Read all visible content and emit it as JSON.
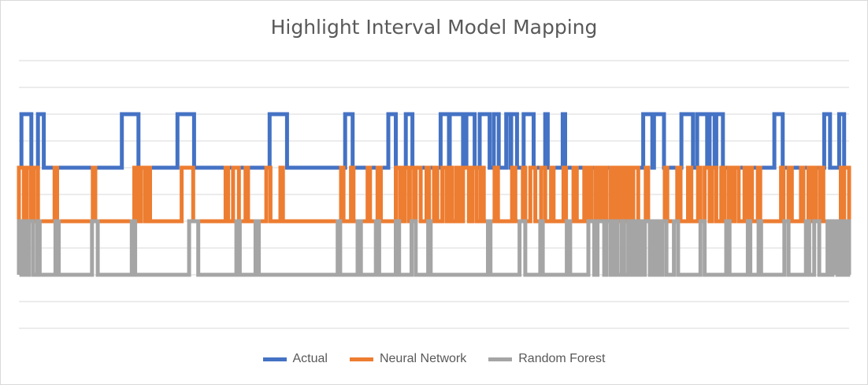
{
  "chart_data": {
    "type": "line",
    "title": "Highlight Interval Model Mapping",
    "xlabel": "",
    "ylabel": "",
    "grid": true,
    "legend_position": "bottom",
    "x_range": [
      0,
      1000
    ],
    "series": [
      {
        "name": "Actual",
        "color": "#4472C4",
        "baseline": 1,
        "high": 2,
        "intervals": [
          [
            3,
            15
          ],
          [
            23,
            30
          ],
          [
            124,
            144
          ],
          [
            191,
            211
          ],
          [
            302,
            323
          ],
          [
            393,
            402
          ],
          [
            445,
            454
          ],
          [
            466,
            474
          ],
          [
            508,
            518
          ],
          [
            519,
            535
          ],
          [
            539,
            549
          ],
          [
            555,
            567
          ],
          [
            572,
            578
          ],
          [
            587,
            592
          ],
          [
            593,
            600
          ],
          [
            608,
            620
          ],
          [
            634,
            637
          ],
          [
            655,
            658
          ],
          [
            752,
            763
          ],
          [
            765,
            777
          ],
          [
            798,
            812
          ],
          [
            817,
            829
          ],
          [
            832,
            838
          ],
          [
            840,
            848
          ],
          [
            910,
            920
          ],
          [
            970,
            977
          ],
          [
            988,
            994
          ]
        ]
      },
      {
        "name": "Neural Network",
        "color": "#ED7D31",
        "baseline": 0,
        "high": 1,
        "intervals": [
          [
            0,
            6
          ],
          [
            9,
            14
          ],
          [
            18,
            23
          ],
          [
            43,
            46
          ],
          [
            89,
            92
          ],
          [
            139,
            143
          ],
          [
            147,
            152
          ],
          [
            155,
            158
          ],
          [
            196,
            210
          ],
          [
            249,
            252
          ],
          [
            258,
            265
          ],
          [
            273,
            276
          ],
          [
            298,
            303
          ],
          [
            315,
            318
          ],
          [
            388,
            391
          ],
          [
            400,
            403
          ],
          [
            420,
            423
          ],
          [
            432,
            436
          ],
          [
            454,
            459
          ],
          [
            460,
            463
          ],
          [
            465,
            470
          ],
          [
            471,
            476
          ],
          [
            478,
            484
          ],
          [
            491,
            494
          ],
          [
            500,
            504
          ],
          [
            510,
            515
          ],
          [
            518,
            522
          ],
          [
            527,
            531
          ],
          [
            535,
            542
          ],
          [
            546,
            551
          ],
          [
            556,
            560
          ],
          [
            573,
            577
          ],
          [
            594,
            598
          ],
          [
            607,
            610
          ],
          [
            616,
            622
          ],
          [
            629,
            634
          ],
          [
            641,
            644
          ],
          [
            656,
            659
          ],
          [
            668,
            672
          ],
          [
            681,
            683
          ],
          [
            686,
            690
          ],
          [
            695,
            698
          ],
          [
            700,
            703
          ],
          [
            705,
            708
          ],
          [
            713,
            716
          ],
          [
            720,
            724
          ],
          [
            728,
            731
          ],
          [
            733,
            737
          ],
          [
            740,
            746
          ],
          [
            755,
            758
          ],
          [
            778,
            781
          ],
          [
            793,
            797
          ],
          [
            806,
            810
          ],
          [
            818,
            821
          ],
          [
            826,
            832
          ],
          [
            835,
            840
          ],
          [
            846,
            850
          ],
          [
            855,
            859
          ],
          [
            862,
            867
          ],
          [
            874,
            877
          ],
          [
            879,
            883
          ],
          [
            890,
            893
          ],
          [
            918,
            921
          ],
          [
            927,
            931
          ],
          [
            942,
            945
          ],
          [
            951,
            955
          ],
          [
            957,
            960
          ],
          [
            965,
            969
          ],
          [
            990,
            992
          ],
          [
            994,
            1000
          ]
        ]
      },
      {
        "name": "Random Forest",
        "color": "#A5A5A5",
        "baseline": -1,
        "high": 0,
        "intervals": [
          [
            0,
            3
          ],
          [
            5,
            8
          ],
          [
            12,
            17
          ],
          [
            22,
            25
          ],
          [
            44,
            48
          ],
          [
            88,
            95
          ],
          [
            136,
            140
          ],
          [
            205,
            216
          ],
          [
            262,
            266
          ],
          [
            285,
            289
          ],
          [
            384,
            387
          ],
          [
            408,
            412
          ],
          [
            430,
            434
          ],
          [
            454,
            458
          ],
          [
            473,
            478
          ],
          [
            493,
            496
          ],
          [
            565,
            568
          ],
          [
            603,
            610
          ],
          [
            628,
            631
          ],
          [
            660,
            664
          ],
          [
            686,
            693
          ],
          [
            697,
            705
          ],
          [
            708,
            713
          ],
          [
            717,
            721
          ],
          [
            726,
            729
          ],
          [
            734,
            737
          ],
          [
            740,
            744
          ],
          [
            748,
            752
          ],
          [
            754,
            760
          ],
          [
            762,
            766
          ],
          [
            767,
            769
          ],
          [
            771,
            774
          ],
          [
            775,
            780
          ],
          [
            789,
            794
          ],
          [
            821,
            826
          ],
          [
            852,
            856
          ],
          [
            878,
            881
          ],
          [
            891,
            894
          ],
          [
            922,
            927
          ],
          [
            948,
            952
          ],
          [
            958,
            964
          ],
          [
            974,
            976
          ],
          [
            980,
            983
          ],
          [
            983,
            986
          ],
          [
            988,
            991
          ],
          [
            992,
            995
          ],
          [
            996,
            998
          ],
          [
            999,
            1000
          ]
        ]
      }
    ]
  }
}
